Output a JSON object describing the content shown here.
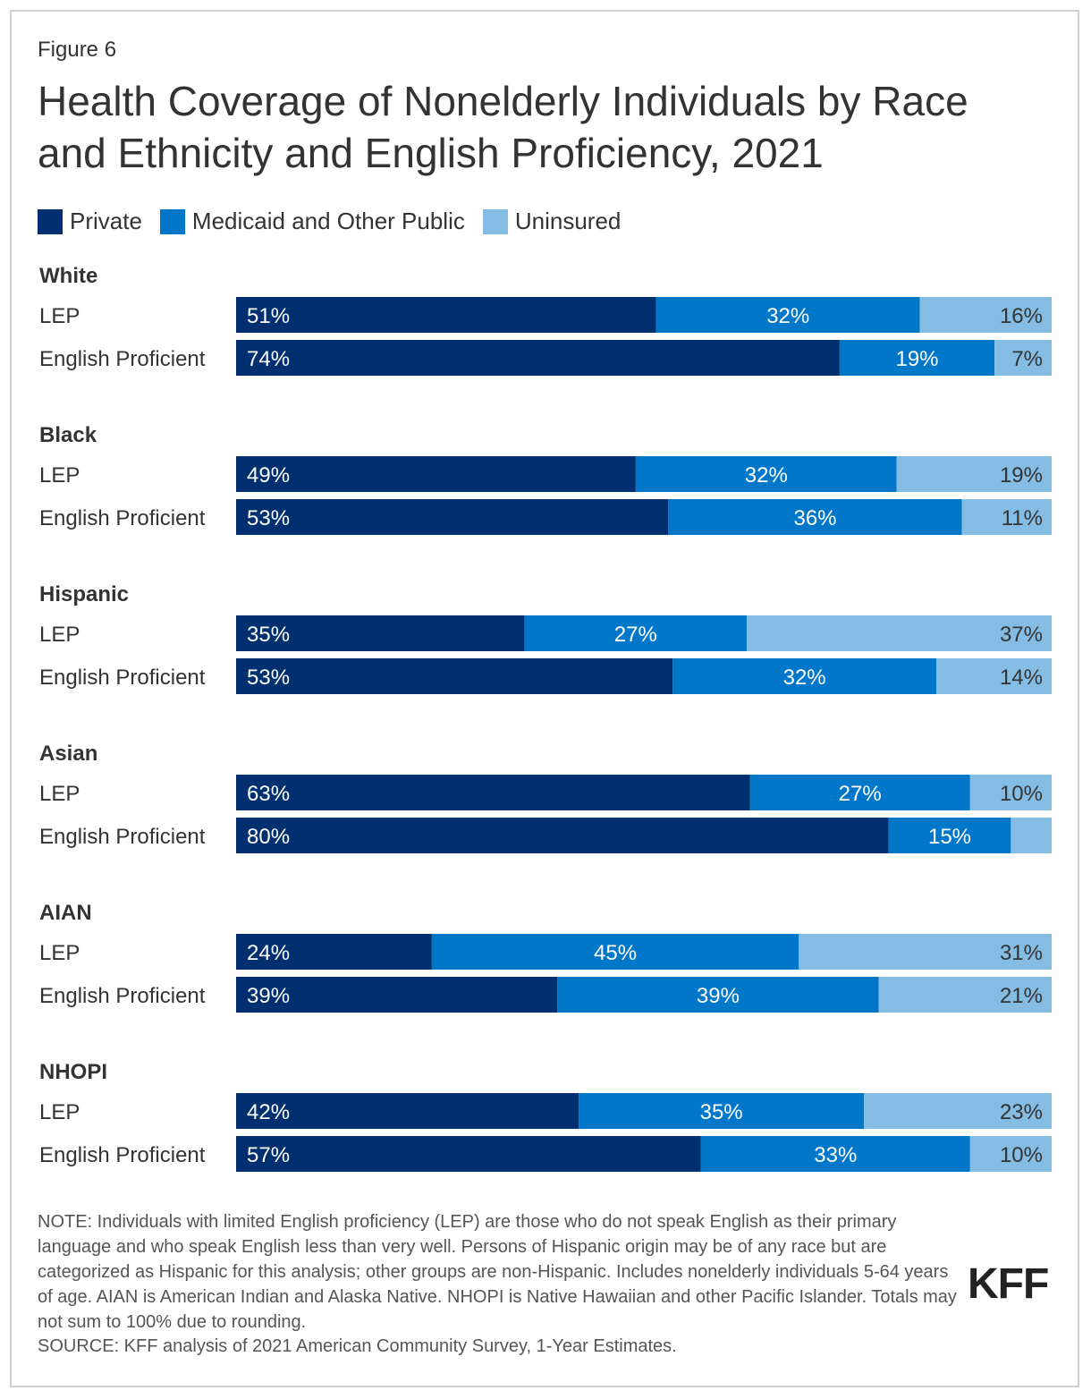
{
  "figure_label": "Figure 6",
  "title": "Health Coverage of Nonelderly Individuals by Race and Ethnicity and English Proficiency, 2021",
  "colors": {
    "Private": "#00306f",
    "Medicaid and Other Public": "#0077c8",
    "Uninsured": "#84bce3"
  },
  "chart_data": {
    "type": "bar",
    "orientation": "horizontal",
    "stacked": true,
    "legend": [
      "Private",
      "Medicaid and Other Public",
      "Uninsured"
    ],
    "legend_placement": "top-left",
    "groups": [
      {
        "name": "White",
        "rows": [
          {
            "label": "LEP",
            "values": [
              51,
              32,
              16
            ]
          },
          {
            "label": "English Proficient",
            "values": [
              74,
              19,
              7
            ]
          }
        ]
      },
      {
        "name": "Black",
        "rows": [
          {
            "label": "LEP",
            "values": [
              49,
              32,
              19
            ]
          },
          {
            "label": "English Proficient",
            "values": [
              53,
              36,
              11
            ]
          }
        ]
      },
      {
        "name": "Hispanic",
        "rows": [
          {
            "label": "LEP",
            "values": [
              35,
              27,
              37
            ]
          },
          {
            "label": "English Proficient",
            "values": [
              53,
              32,
              14
            ]
          }
        ]
      },
      {
        "name": "Asian",
        "rows": [
          {
            "label": "LEP",
            "values": [
              63,
              27,
              10
            ]
          },
          {
            "label": "English Proficient",
            "values": [
              80,
              15,
              5
            ],
            "hidden_labels": [
              false,
              false,
              true
            ]
          }
        ]
      },
      {
        "name": "AIAN",
        "rows": [
          {
            "label": "LEP",
            "values": [
              24,
              45,
              31
            ]
          },
          {
            "label": "English Proficient",
            "values": [
              39,
              39,
              21
            ]
          }
        ]
      },
      {
        "name": "NHOPI",
        "rows": [
          {
            "label": "LEP",
            "values": [
              42,
              35,
              23
            ]
          },
          {
            "label": "English Proficient",
            "values": [
              57,
              33,
              10
            ]
          }
        ]
      }
    ]
  },
  "note": "NOTE: Individuals with limited English proficiency (LEP) are those who do not speak English as their primary language and who speak English less than very well. Persons of Hispanic origin may be of any race but are categorized as Hispanic for this analysis; other groups are non-Hispanic. Includes nonelderly individuals 5-64 years of age. AIAN is American Indian and Alaska Native. NHOPI is Native Hawaiian and other Pacific Islander. Totals may not sum to 100% due to rounding.",
  "source": "SOURCE: KFF analysis of 2021 American Community Survey, 1-Year Estimates.",
  "logo": "KFF"
}
